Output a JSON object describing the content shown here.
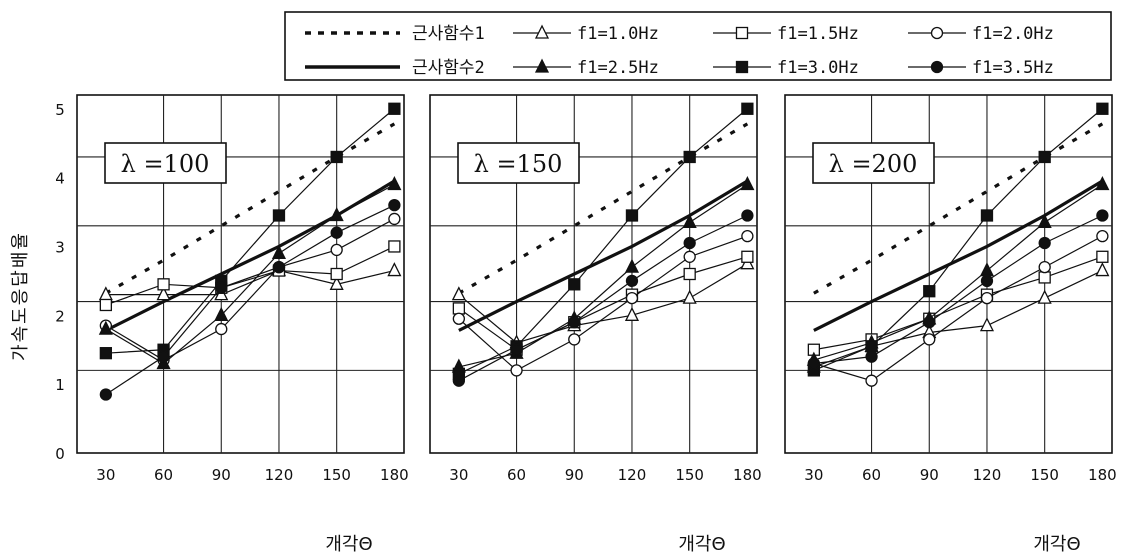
{
  "chart_data": {
    "type": "line",
    "ylabel": "가속도응답배율",
    "xlabel": "개각Θ",
    "x": [
      30,
      60,
      90,
      120,
      150,
      180
    ],
    "x_ticks": [
      "30",
      "60",
      "90",
      "120",
      "150",
      "180"
    ],
    "y_ticks": [
      "0",
      "1",
      "2",
      "3",
      "4",
      "5"
    ],
    "ylim": [
      0,
      5.2
    ],
    "grid": true,
    "legend_placement": "top",
    "legend": [
      {
        "label": "근사함수1",
        "style": "dotted",
        "marker": "none"
      },
      {
        "label": "f1=1.0Hz",
        "style": "solid",
        "marker": "open-triangle"
      },
      {
        "label": "f1=1.5Hz",
        "style": "solid",
        "marker": "open-square"
      },
      {
        "label": "f1=2.0Hz",
        "style": "solid",
        "marker": "open-circle"
      },
      {
        "label": "근사함수2",
        "style": "thick",
        "marker": "none"
      },
      {
        "label": "f1=2.5Hz",
        "style": "solid",
        "marker": "filled-triangle"
      },
      {
        "label": "f1=3.0Hz",
        "style": "solid",
        "marker": "filled-square"
      },
      {
        "label": "f1=3.5Hz",
        "style": "solid",
        "marker": "filled-circle"
      }
    ],
    "approx1": [
      2.32,
      2.8,
      3.3,
      3.8,
      4.3,
      4.78
    ],
    "approx2": [
      1.78,
      2.2,
      2.6,
      3.0,
      3.45,
      3.95
    ],
    "panels": [
      {
        "title": "λ =100",
        "series": [
          {
            "name": "f1=1.0Hz",
            "values": [
              2.3,
              2.3,
              2.3,
              2.65,
              2.45,
              2.65
            ]
          },
          {
            "name": "f1=1.5Hz",
            "values": [
              2.15,
              2.45,
              2.4,
              2.65,
              2.6,
              3.0
            ]
          },
          {
            "name": "f1=2.0Hz",
            "values": [
              1.85,
              1.35,
              1.8,
              2.7,
              2.95,
              3.4
            ]
          },
          {
            "name": "f1=2.5Hz",
            "values": [
              1.8,
              1.3,
              2.0,
              2.9,
              3.45,
              3.9
            ]
          },
          {
            "name": "f1=3.0Hz",
            "values": [
              1.45,
              1.5,
              2.5,
              3.45,
              4.3,
              5.0
            ]
          },
          {
            "name": "f1=3.5Hz",
            "values": [
              0.85,
              1.4,
              2.4,
              2.7,
              3.2,
              3.6
            ]
          }
        ]
      },
      {
        "title": "λ =150",
        "series": [
          {
            "name": "f1=1.0Hz",
            "values": [
              2.3,
              1.6,
              1.85,
              2.0,
              2.25,
              2.75
            ]
          },
          {
            "name": "f1=1.5Hz",
            "values": [
              2.1,
              1.5,
              1.9,
              2.3,
              2.6,
              2.85
            ]
          },
          {
            "name": "f1=2.0Hz",
            "values": [
              1.95,
              1.2,
              1.65,
              2.25,
              2.85,
              3.15
            ]
          },
          {
            "name": "f1=2.5Hz",
            "values": [
              1.25,
              1.45,
              1.95,
              2.7,
              3.35,
              3.9
            ]
          },
          {
            "name": "f1=3.0Hz",
            "values": [
              1.15,
              1.55,
              2.45,
              3.45,
              4.3,
              5.0
            ]
          },
          {
            "name": "f1=3.5Hz",
            "values": [
              1.05,
              1.5,
              1.9,
              2.5,
              3.05,
              3.45
            ]
          }
        ]
      },
      {
        "title": "λ =200",
        "series": [
          {
            "name": "f1=1.0Hz",
            "values": [
              1.25,
              1.55,
              1.75,
              1.85,
              2.25,
              2.65
            ]
          },
          {
            "name": "f1=1.5Hz",
            "values": [
              1.5,
              1.65,
              1.95,
              2.3,
              2.55,
              2.85
            ]
          },
          {
            "name": "f1=2.0Hz",
            "values": [
              1.3,
              1.05,
              1.65,
              2.25,
              2.7,
              3.15
            ]
          },
          {
            "name": "f1=2.5Hz",
            "values": [
              1.35,
              1.6,
              1.95,
              2.65,
              3.35,
              3.9
            ]
          },
          {
            "name": "f1=3.0Hz",
            "values": [
              1.2,
              1.55,
              2.35,
              3.45,
              4.3,
              5.0
            ]
          },
          {
            "name": "f1=3.5Hz",
            "values": [
              1.3,
              1.4,
              1.9,
              2.5,
              3.05,
              3.45
            ]
          }
        ]
      }
    ]
  },
  "colors": {
    "line": "#111111",
    "grid": "#222222",
    "background": "#ffffff"
  }
}
